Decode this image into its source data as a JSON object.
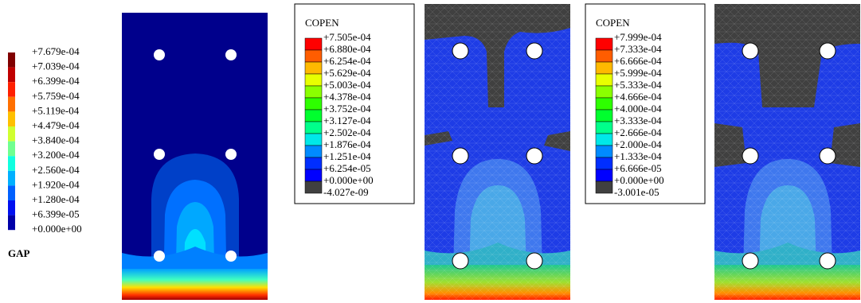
{
  "legends": [
    {
      "title": "GAP",
      "labels": [
        "+7.679e-04",
        "+7.039e-04",
        "+6.399e-04",
        "+5.759e-04",
        "+5.119e-04",
        "+4.479e-04",
        "+3.840e-04",
        "+3.200e-04",
        "+2.560e-04",
        "+1.920e-04",
        "+1.280e-04",
        "+6.399e-05",
        "+0.000e+00"
      ]
    },
    {
      "title": "COPEN",
      "labels": [
        "+7.505e-04",
        "+6.880e-04",
        "+6.254e-04",
        "+5.629e-04",
        "+5.003e-04",
        "+4.378e-04",
        "+3.752e-04",
        "+3.127e-04",
        "+2.502e-04",
        "+1.876e-04",
        "+1.251e-04",
        "+6.254e-05",
        "+0.000e+00",
        "-4.027e-09"
      ]
    },
    {
      "title": "COPEN",
      "labels": [
        "+7.999e-04",
        "+7.333e-04",
        "+6.666e-04",
        "+5.999e-04",
        "+5.333e-04",
        "+4.666e-04",
        "+4.000e-04",
        "+3.333e-04",
        "+2.666e-04",
        "+2.000e-04",
        "+1.333e-04",
        "+6.666e-05",
        "+0.000e+00",
        "-3.001e-05"
      ]
    }
  ]
}
